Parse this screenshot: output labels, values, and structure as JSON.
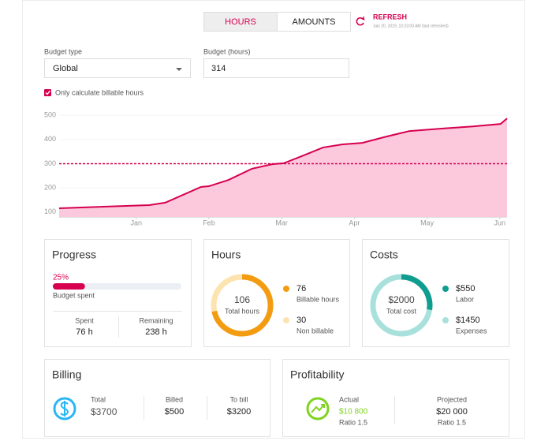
{
  "toggle": {
    "hours": "HOURS",
    "amounts": "AMOUNTS"
  },
  "refresh": {
    "label": "REFRESH",
    "timestamp": "July 20, 2019, 10:23:00 AM (last refreshed)"
  },
  "form": {
    "budget_type_label": "Budget type",
    "budget_type_value": "Global",
    "budget_hours_label": "Budget (hours)",
    "budget_hours_value": "314",
    "checkbox_label": "Only calculate billable hours"
  },
  "chart": {
    "type": "area",
    "x": [
      -1.06,
      0.18,
      0.4,
      0.89,
      1.0,
      1.27,
      1.59,
      1.87,
      2.03,
      2.3,
      2.57,
      2.84,
      3.11,
      3.44,
      3.76,
      4.2,
      4.63,
      5.01,
      5.1
    ],
    "values": [
      116,
      129,
      139,
      204,
      207,
      233,
      279,
      298,
      302,
      334,
      367,
      380,
      386,
      412,
      435,
      445,
      454,
      464,
      487
    ],
    "color": "#d6004f",
    "fill": "#fcc9dc",
    "budget_line": 300,
    "xlim": [
      -1.06,
      5.1
    ],
    "ylim": [
      80,
      520
    ],
    "yticks": [
      100,
      200,
      300,
      400,
      500
    ],
    "xticks": [
      {
        "value": 0,
        "label": "Jan"
      },
      {
        "value": 1,
        "label": "Feb"
      },
      {
        "value": 2,
        "label": "Mar"
      },
      {
        "value": 3,
        "label": "Apr"
      },
      {
        "value": 4,
        "label": "May"
      },
      {
        "value": 5,
        "label": "Jun"
      }
    ]
  },
  "progress": {
    "title": "Progress",
    "percent": 25,
    "percent_label": "25%",
    "caption": "Budget spent",
    "spent_label": "Spent",
    "spent_value": "76 h",
    "remaining_label": "Remaining",
    "remaining_value": "238 h"
  },
  "hours": {
    "title": "Hours",
    "total": "106",
    "total_label": "Total hours",
    "segments": [
      {
        "value": 76,
        "label": "Billable hours",
        "color": "#f39c12"
      },
      {
        "value": 30,
        "label": "Non billable",
        "color": "#fde3b0"
      }
    ]
  },
  "costs": {
    "title": "Costs",
    "total": "$2000",
    "total_label": "Total cost",
    "segments": [
      {
        "value": 550,
        "value_label": "$550",
        "label": "Labor",
        "color": "#0f9d8f"
      },
      {
        "value": 1450,
        "value_label": "$1450",
        "label": "Expenses",
        "color": "#a8e1dc"
      }
    ]
  },
  "billing": {
    "title": "Billing",
    "items": [
      {
        "label": "Total",
        "value": "$3700"
      },
      {
        "label": "Billed",
        "value": "$500"
      },
      {
        "label": "To bill",
        "value": "$3200"
      }
    ]
  },
  "profitability": {
    "title": "Profitability",
    "actual_label": "Actual",
    "actual_value": "$10 800",
    "actual_ratio": "Ratio 1.5",
    "projected_label": "Projected",
    "projected_value": "$20 000",
    "projected_ratio": "Ratio 1.5"
  }
}
